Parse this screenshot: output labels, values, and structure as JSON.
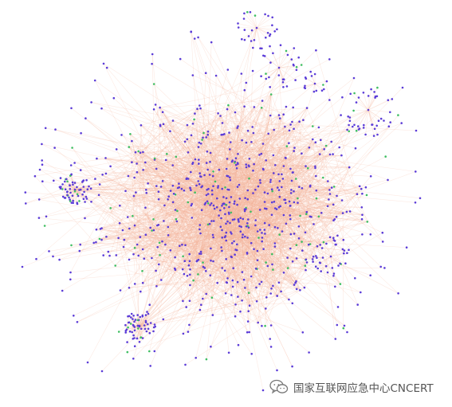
{
  "watermark": {
    "text": "国家互联网应急中心CNCERT",
    "icon": "wechat-icon"
  },
  "colors": {
    "background": "#ffffff",
    "edge": "#f3b59c",
    "node_primary": "#5b3cd8",
    "node_secondary": "#3fbf63"
  }
}
